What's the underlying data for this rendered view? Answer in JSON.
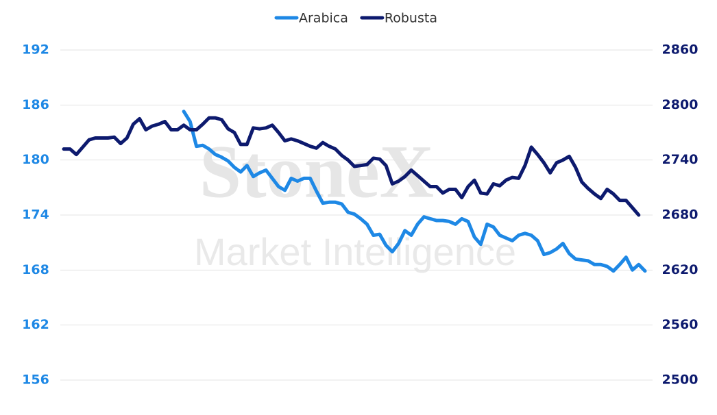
{
  "chart_data": {
    "type": "line",
    "watermark": {
      "brand": "StoneX",
      "subtitle": "Market Intelligence"
    },
    "categories": [
      null,
      null,
      null,
      null,
      null,
      null,
      null,
      null,
      null,
      null,
      null,
      null,
      null,
      null,
      null,
      null,
      null,
      null,
      null,
      null,
      null,
      null,
      null,
      null,
      null,
      null,
      null,
      null,
      null,
      null,
      null,
      null,
      null,
      null,
      null,
      null,
      null,
      null,
      null,
      null,
      null,
      null,
      null,
      null,
      null,
      null,
      null,
      null,
      null,
      null,
      null,
      null,
      null,
      null,
      null,
      null,
      null,
      null,
      null,
      null,
      null,
      null,
      null,
      null,
      null,
      null,
      null,
      null,
      null,
      null,
      null,
      null,
      null,
      null,
      null,
      null,
      null,
      null,
      null,
      null,
      null,
      null,
      null,
      null,
      null,
      null,
      null,
      null,
      null,
      null,
      null,
      null,
      null
    ],
    "series": [
      {
        "name": "Arabica",
        "color": "#1e88e5",
        "axis": "y",
        "values": [
          null,
          null,
          null,
          null,
          null,
          null,
          null,
          null,
          null,
          null,
          null,
          null,
          null,
          null,
          null,
          null,
          null,
          null,
          null,
          185.3,
          184.2,
          181.5,
          181.6,
          181.2,
          180.6,
          180.3,
          179.9,
          179.2,
          178.7,
          179.4,
          178.2,
          178.6,
          178.9,
          178.0,
          177.1,
          176.7,
          178.0,
          177.7,
          178.0,
          178.0,
          176.6,
          175.3,
          175.4,
          175.4,
          175.2,
          174.3,
          174.1,
          173.6,
          173.0,
          171.8,
          171.9,
          170.7,
          170.0,
          170.9,
          172.3,
          171.8,
          173.0,
          173.8,
          173.6,
          173.4,
          173.4,
          173.3,
          173.0,
          173.6,
          173.3,
          171.6,
          170.8,
          173.0,
          172.7,
          171.8,
          171.5,
          171.2,
          171.8,
          172.0,
          171.8,
          171.2,
          169.7,
          169.9,
          170.3,
          170.9,
          169.8,
          169.2,
          169.1,
          169.0,
          168.6,
          168.6,
          168.4,
          167.9,
          168.6,
          169.4,
          168.0,
          168.6,
          167.9
        ]
      },
      {
        "name": "Robusta",
        "color": "#0d1a6e",
        "axis": "y2",
        "values": [
          2752,
          2752,
          2746,
          2754,
          2762,
          2764,
          2764,
          2764,
          2765,
          2758,
          2764,
          2779,
          2785,
          2773,
          2777,
          2779,
          2782,
          2773,
          2773,
          2778,
          2773,
          2773,
          2779,
          2786,
          2786,
          2784,
          2774,
          2770,
          2757,
          2757,
          2775,
          2774,
          2775,
          2778,
          2770,
          2761,
          2763,
          2761,
          2758,
          2755,
          2753,
          2759,
          2755,
          2752,
          2745,
          2740,
          2733,
          2734,
          2735,
          2742,
          2741,
          2734,
          2714,
          2717,
          2722,
          2729,
          2723,
          2717,
          2711,
          2711,
          2704,
          2708,
          2708,
          2699,
          2711,
          2718,
          2704,
          2703,
          2714,
          2712,
          2718,
          2721,
          2720,
          2734,
          2754,
          2746,
          2737,
          2726,
          2737,
          2740,
          2744,
          2732,
          2716,
          2709,
          2703,
          2698,
          2708,
          2703,
          2696,
          2696,
          2688,
          2680,
          null
        ]
      }
    ],
    "ylim": [
      156,
      192
    ],
    "yticks": [
      156,
      162,
      168,
      174,
      180,
      186,
      192
    ],
    "y2lim": [
      2500,
      2860
    ],
    "y2ticks": [
      2500,
      2560,
      2620,
      2680,
      2740,
      2800,
      2860
    ],
    "grid": true,
    "legend": "top"
  }
}
